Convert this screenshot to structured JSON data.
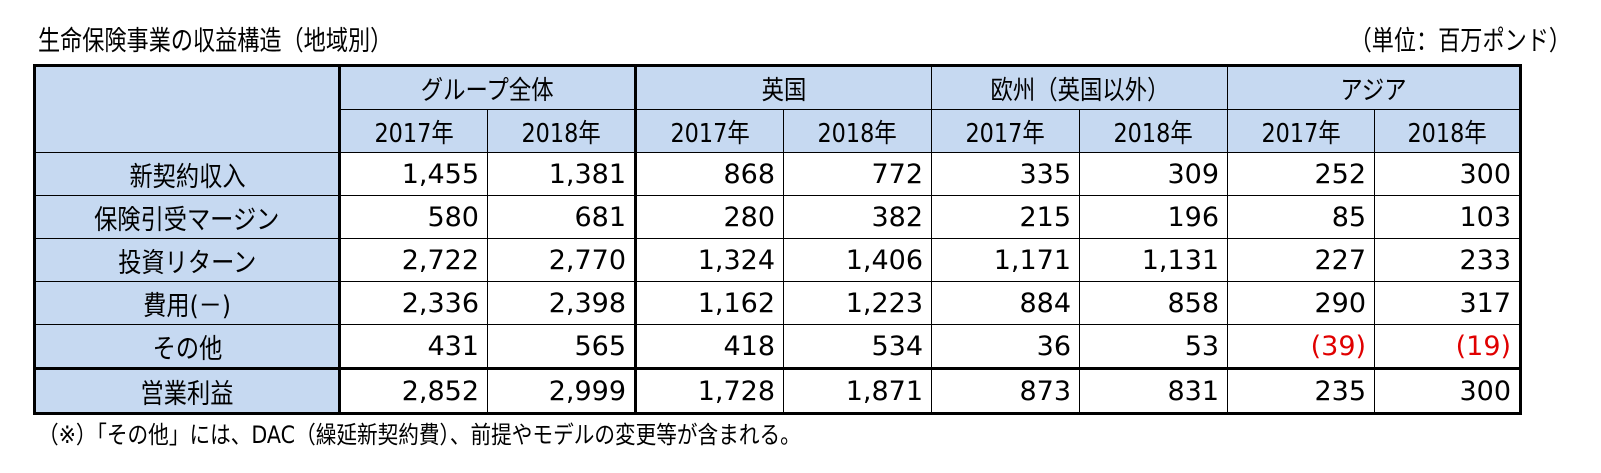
{
  "title": "生命保険事業の収益構造（地域別）",
  "unit": "（単位：百万ポンド）",
  "footnote": "（※）「その他」には、DAC（繰延新契約費）、前提やモデルの変更等が含まれる。",
  "table": {
    "groups": [
      "グループ全体",
      "英国",
      "欧州（英国以外）",
      "アジア"
    ],
    "years": [
      "2017年",
      "2018年",
      "2017年",
      "2018年",
      "2017年",
      "2018年",
      "2017年",
      "2018年"
    ],
    "rows": [
      {
        "label": "新契約収入",
        "values": [
          "1,455",
          "1,381",
          "868",
          "772",
          "335",
          "309",
          "252",
          "300"
        ]
      },
      {
        "label": "保険引受マージン",
        "values": [
          "580",
          "681",
          "280",
          "382",
          "215",
          "196",
          "85",
          "103"
        ]
      },
      {
        "label": "投資リターン",
        "values": [
          "2,722",
          "2,770",
          "1,324",
          "1,406",
          "1,171",
          "1,131",
          "227",
          "233"
        ]
      },
      {
        "label": "費用(－)",
        "values": [
          "2,336",
          "2,398",
          "1,162",
          "1,223",
          "884",
          "858",
          "290",
          "317"
        ]
      },
      {
        "label": "その他",
        "values": [
          "431",
          "565",
          "418",
          "534",
          "36",
          "53",
          "(39)",
          "(19)"
        ]
      },
      {
        "label": "営業利益",
        "values": [
          "2,852",
          "2,999",
          "1,728",
          "1,871",
          "873",
          "831",
          "235",
          "300"
        ]
      }
    ]
  },
  "colors": {
    "header_bg": "#c6d9f1",
    "negative_text": "#e00000"
  }
}
